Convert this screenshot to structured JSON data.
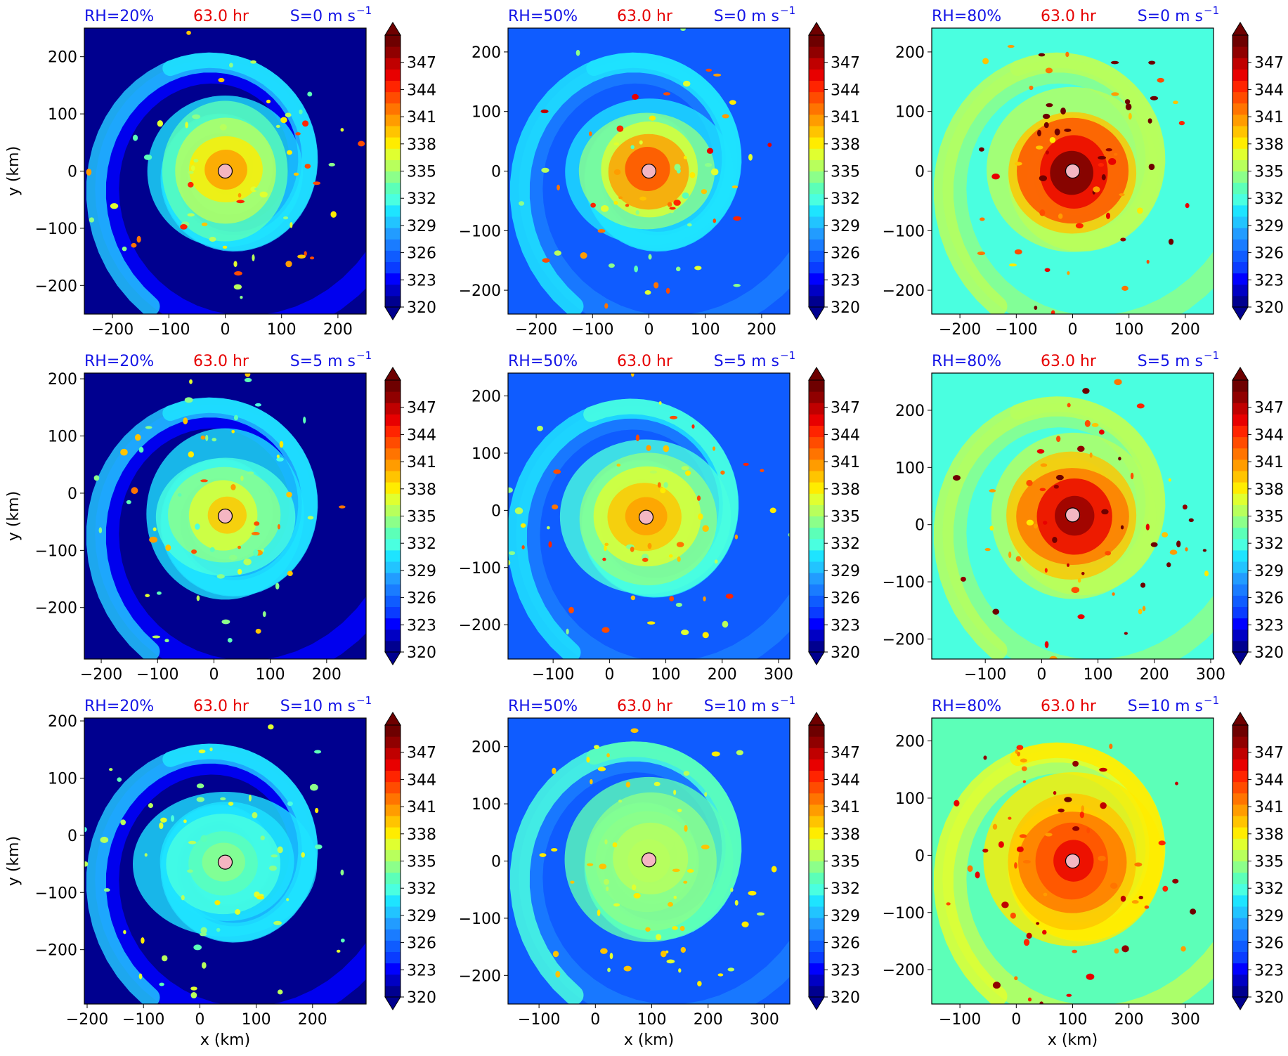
{
  "colormap": [
    "#00008f",
    "#0000c4",
    "#0000ff",
    "#0a3cff",
    "#0f5cff",
    "#1a7cff",
    "#229cff",
    "#22c4ff",
    "#1ee4ff",
    "#4affe0",
    "#5cffb8",
    "#8cff8a",
    "#b8ff5c",
    "#e0ff30",
    "#ffec00",
    "#ffc400",
    "#ff9c00",
    "#ff7400",
    "#ff4c00",
    "#ff2400",
    "#e80000",
    "#c00000",
    "#900000",
    "#6e0000"
  ],
  "colorbar": {
    "ticks": [
      "320",
      "323",
      "326",
      "329",
      "332",
      "335",
      "338",
      "341",
      "344",
      "347"
    ],
    "range": [
      320,
      350
    ]
  },
  "axis_labels": {
    "x": "x (km)",
    "y": "y (km)"
  },
  "chart_data": [
    {
      "type": "heatmap",
      "rh": "RH=20%",
      "time": "63.0 hr",
      "shear": "S=0 m s",
      "shear_exp": "−1",
      "xticks": [
        "−200",
        "−100",
        "0",
        "100",
        "200"
      ],
      "yticks": [
        "200",
        "100",
        "0",
        "−100",
        "−200"
      ],
      "xlim": [
        -250,
        250
      ],
      "ylim": [
        -250,
        250
      ],
      "center": [
        0,
        0
      ],
      "core_theta": 341,
      "env_theta": 321,
      "ring_theta": 330,
      "show_ylabel": true,
      "show_xlabel": false
    },
    {
      "type": "heatmap",
      "rh": "RH=50%",
      "time": "63.0 hr",
      "shear": "S=0 m s",
      "shear_exp": "−1",
      "xticks": [
        "−200",
        "−100",
        "0",
        "100",
        "200"
      ],
      "yticks": [
        "200",
        "100",
        "0",
        "−100",
        "−200"
      ],
      "xlim": [
        -250,
        250
      ],
      "ylim": [
        -240,
        240
      ],
      "center": [
        0,
        0
      ],
      "core_theta": 343,
      "env_theta": 325,
      "ring_theta": 331,
      "show_ylabel": false,
      "show_xlabel": false
    },
    {
      "type": "heatmap",
      "rh": "RH=80%",
      "time": "63.0 hr",
      "shear": "S=0 m s",
      "shear_exp": "−1",
      "xticks": [
        "−200",
        "−100",
        "0",
        "100",
        "200"
      ],
      "yticks": [
        "200",
        "100",
        "0",
        "−100",
        "−200"
      ],
      "xlim": [
        -250,
        250
      ],
      "ylim": [
        -240,
        240
      ],
      "center": [
        0,
        0
      ],
      "core_theta": 349,
      "env_theta": 332,
      "ring_theta": 336,
      "show_ylabel": false,
      "show_xlabel": false
    },
    {
      "type": "heatmap",
      "rh": "RH=20%",
      "time": "63.0 hr",
      "shear": "S=5 m s",
      "shear_exp": "−1",
      "xticks": [
        "−200",
        "−100",
        "0",
        "100",
        "200"
      ],
      "yticks": [
        "200",
        "100",
        "0",
        "−100",
        "−200"
      ],
      "xlim": [
        -230,
        270
      ],
      "ylim": [
        -290,
        210
      ],
      "center": [
        20,
        -40
      ],
      "core_theta": 339,
      "env_theta": 321,
      "ring_theta": 330,
      "show_ylabel": true,
      "show_xlabel": false
    },
    {
      "type": "heatmap",
      "rh": "RH=50%",
      "time": "63.0 hr",
      "shear": "S=5 m s",
      "shear_exp": "−1",
      "xticks": [
        "−100",
        "0",
        "100",
        "200",
        "300"
      ],
      "yticks": [
        "200",
        "100",
        "0",
        "−100",
        "−200"
      ],
      "xlim": [
        -180,
        320
      ],
      "ylim": [
        -260,
        240
      ],
      "center": [
        65,
        -12
      ],
      "core_theta": 341,
      "env_theta": 325,
      "ring_theta": 332,
      "show_ylabel": false,
      "show_xlabel": false
    },
    {
      "type": "heatmap",
      "rh": "RH=80%",
      "time": "63.0 hr",
      "shear": "S=5 m s",
      "shear_exp": "−1",
      "xticks": [
        "−100",
        "0",
        "100",
        "200",
        "300"
      ],
      "yticks": [
        "200",
        "100",
        "0",
        "−100",
        "−200"
      ],
      "xlim": [
        -195,
        305
      ],
      "ylim": [
        -235,
        265
      ],
      "center": [
        55,
        17
      ],
      "core_theta": 348,
      "env_theta": 332,
      "ring_theta": 336,
      "show_ylabel": false,
      "show_xlabel": false
    },
    {
      "type": "heatmap",
      "rh": "RH=20%",
      "time": "63.0 hr",
      "shear": "S=10 m s",
      "shear_exp": "−1",
      "xticks": [
        "−200",
        "−100",
        "0",
        "100",
        "200"
      ],
      "yticks": [
        "200",
        "100",
        "0",
        "−100",
        "−200"
      ],
      "xlim": [
        -205,
        295
      ],
      "ylim": [
        -295,
        205
      ],
      "center": [
        45,
        -47
      ],
      "core_theta": 334,
      "env_theta": 321,
      "ring_theta": 330,
      "show_ylabel": true,
      "show_xlabel": true
    },
    {
      "type": "heatmap",
      "rh": "RH=50%",
      "time": "63.0 hr",
      "shear": "S=10 m s",
      "shear_exp": "−1",
      "xticks": [
        "−100",
        "0",
        "100",
        "200",
        "300"
      ],
      "yticks": [
        "200",
        "100",
        "0",
        "−100",
        "−200"
      ],
      "xlim": [
        -155,
        345
      ],
      "ylim": [
        -250,
        250
      ],
      "center": [
        95,
        2
      ],
      "core_theta": 336,
      "env_theta": 325,
      "ring_theta": 333,
      "show_ylabel": false,
      "show_xlabel": true
    },
    {
      "type": "heatmap",
      "rh": "RH=80%",
      "time": "63.0 hr",
      "shear": "S=10 m s",
      "shear_exp": "−1",
      "xticks": [
        "−100",
        "0",
        "100",
        "200",
        "300"
      ],
      "yticks": [
        "200",
        "100",
        "0",
        "−100",
        "−200"
      ],
      "xlim": [
        -150,
        350
      ],
      "ylim": [
        -260,
        240
      ],
      "center": [
        100,
        -10
      ],
      "core_theta": 345,
      "env_theta": 333,
      "ring_theta": 338,
      "show_ylabel": false,
      "show_xlabel": true
    }
  ]
}
